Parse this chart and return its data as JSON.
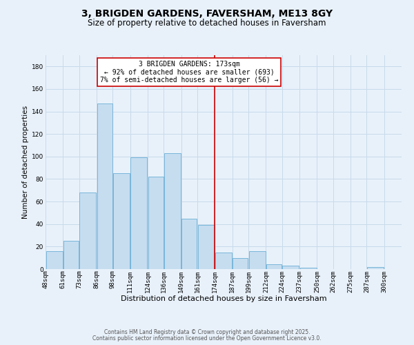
{
  "title": "3, BRIGDEN GARDENS, FAVERSHAM, ME13 8GY",
  "subtitle": "Size of property relative to detached houses in Faversham",
  "xlabel": "Distribution of detached houses by size in Faversham",
  "ylabel": "Number of detached properties",
  "bin_labels": [
    "48sqm",
    "61sqm",
    "73sqm",
    "86sqm",
    "98sqm",
    "111sqm",
    "124sqm",
    "136sqm",
    "149sqm",
    "161sqm",
    "174sqm",
    "187sqm",
    "199sqm",
    "212sqm",
    "224sqm",
    "237sqm",
    "250sqm",
    "262sqm",
    "275sqm",
    "287sqm",
    "300sqm"
  ],
  "bar_values": [
    16,
    25,
    68,
    147,
    85,
    99,
    82,
    103,
    45,
    39,
    15,
    10,
    16,
    4,
    3,
    1,
    0,
    0,
    0,
    2
  ],
  "bar_left_edges": [
    48,
    61,
    73,
    86,
    98,
    111,
    124,
    136,
    149,
    161,
    174,
    187,
    199,
    212,
    224,
    237,
    250,
    262,
    275,
    287
  ],
  "bar_widths": [
    13,
    12,
    13,
    12,
    13,
    13,
    12,
    13,
    12,
    13,
    13,
    12,
    13,
    12,
    13,
    13,
    12,
    13,
    12,
    13
  ],
  "bar_color": "#c6ddf0",
  "bar_edgecolor": "#6aaed6",
  "vline_x": 174,
  "vline_color": "#cc0000",
  "annotation_text": "3 BRIGDEN GARDENS: 173sqm\n← 92% of detached houses are smaller (693)\n7% of semi-detached houses are larger (56) →",
  "annotation_box_color": "#ffffff",
  "annotation_box_edgecolor": "#cc0000",
  "ylim": [
    0,
    190
  ],
  "yticks": [
    0,
    20,
    40,
    60,
    80,
    100,
    120,
    140,
    160,
    180
  ],
  "xlim_min": 48,
  "xlim_max": 313,
  "grid_color": "#c8daea",
  "background_color": "#e8f1fa",
  "footer_line1": "Contains HM Land Registry data © Crown copyright and database right 2025.",
  "footer_line2": "Contains public sector information licensed under the Open Government Licence v3.0.",
  "title_fontsize": 10,
  "subtitle_fontsize": 8.5,
  "xlabel_fontsize": 8,
  "ylabel_fontsize": 7.5,
  "tick_fontsize": 6.5,
  "annotation_fontsize": 7,
  "footer_fontsize": 5.5
}
